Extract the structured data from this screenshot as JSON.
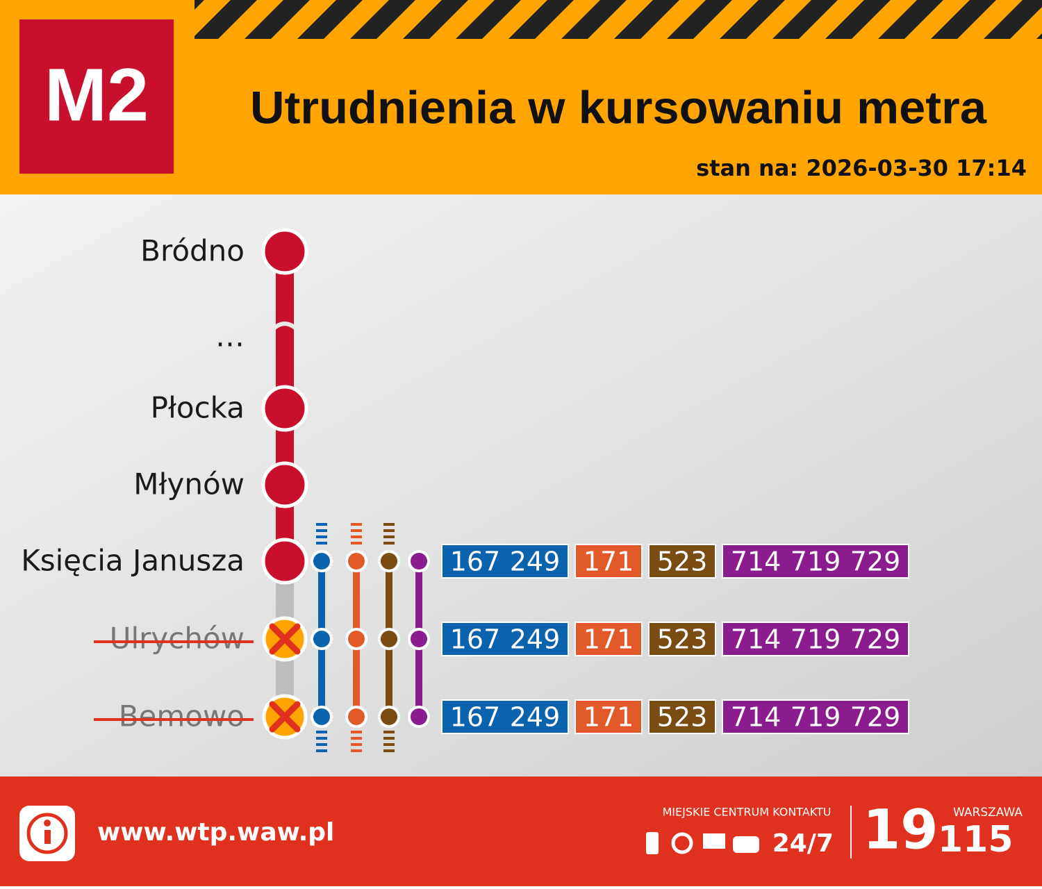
{
  "header": {
    "badge": "M2",
    "title": "Utrudnienia w kursowaniu metra",
    "status": "stan na: 2026-03-30 17:14"
  },
  "line_color": "#c8102e",
  "stations": [
    {
      "name": "Bródno",
      "closed": false
    },
    {
      "name": "…",
      "closed": false,
      "gap": true
    },
    {
      "name": "Płocka",
      "closed": false
    },
    {
      "name": "Młynów",
      "closed": false
    },
    {
      "name": "Księcia Janusza",
      "closed": false,
      "buses": [
        {
          "color": "#0b62ad",
          "lines": [
            "167",
            "249"
          ]
        },
        {
          "color": "#e35a2a",
          "lines": [
            "171"
          ]
        },
        {
          "color": "#7a4c12",
          "lines": [
            "523"
          ]
        },
        {
          "color": "#8b1c8f",
          "lines": [
            "714",
            "719",
            "729"
          ]
        }
      ]
    },
    {
      "name": "Ulrychów",
      "closed": true,
      "buses": [
        {
          "color": "#0b62ad",
          "lines": [
            "167",
            "249"
          ]
        },
        {
          "color": "#e35a2a",
          "lines": [
            "171"
          ]
        },
        {
          "color": "#7a4c12",
          "lines": [
            "523"
          ]
        },
        {
          "color": "#8b1c8f",
          "lines": [
            "714",
            "719",
            "729"
          ]
        }
      ]
    },
    {
      "name": "Bemowo",
      "closed": true,
      "buses": [
        {
          "color": "#0b62ad",
          "lines": [
            "167",
            "249"
          ]
        },
        {
          "color": "#e35a2a",
          "lines": [
            "171"
          ]
        },
        {
          "color": "#7a4c12",
          "lines": [
            "523"
          ]
        },
        {
          "color": "#8b1c8f",
          "lines": [
            "714",
            "719",
            "729"
          ]
        }
      ]
    }
  ],
  "footer": {
    "url": "www.wtp.waw.pl",
    "contact_label": "MIEJSKIE CENTRUM KONTAKTU",
    "hours": "24/7",
    "number_big": "19",
    "number_small": "115",
    "city": "WARSZAWA"
  }
}
